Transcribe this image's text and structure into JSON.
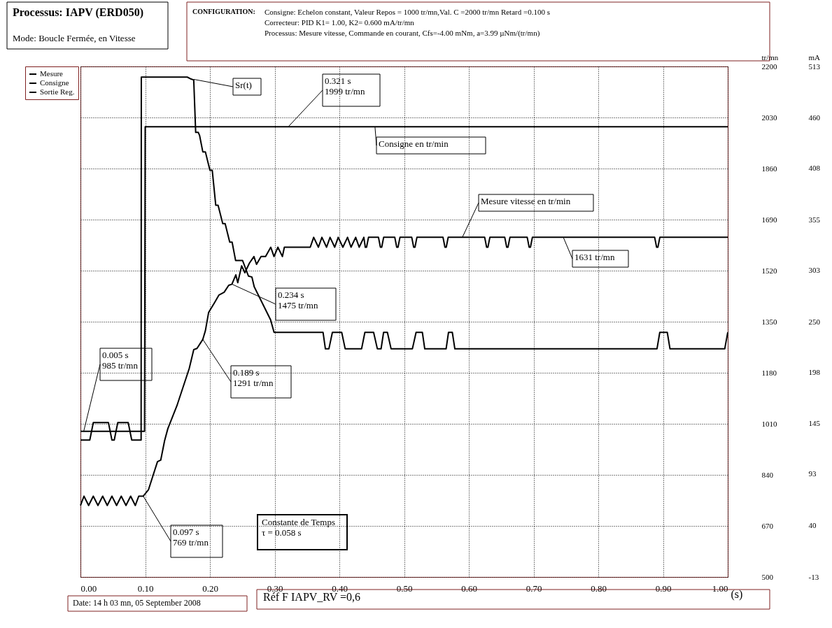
{
  "chart_data": {
    "type": "line",
    "title": "Processus: IAPV (ERD050)",
    "subtitle": "Mode: Boucle Fermée, en Vitesse",
    "xlabel": "(s)",
    "ylabel": "tr/mn",
    "y2label": "mA",
    "xlim": [
      0,
      1
    ],
    "xticks": [
      {
        "value": 0,
        "label": "0.00"
      },
      {
        "value": 0.1,
        "label": "0.10"
      },
      {
        "value": 0.2,
        "label": "0.20"
      },
      {
        "value": 0.3,
        "label": "0.30"
      },
      {
        "value": 0.4,
        "label": "0.40"
      },
      {
        "value": 0.5,
        "label": "0.50"
      },
      {
        "value": 0.6,
        "label": "0.60"
      },
      {
        "value": 0.7,
        "label": "0.70"
      },
      {
        "value": 0.8,
        "label": "0.80"
      },
      {
        "value": 0.9,
        "label": "0.90"
      },
      {
        "value": 1,
        "label": "1.00"
      }
    ],
    "ylim": [
      500,
      2200
    ],
    "yticks": [
      500,
      670,
      840,
      1010,
      1180,
      1350,
      1520,
      1690,
      1860,
      2030,
      2200
    ],
    "y2lim": [
      -13,
      513
    ],
    "y2ticks": [
      -13,
      40,
      93,
      145,
      198,
      250,
      303,
      355,
      408,
      460,
      513
    ],
    "grid": true,
    "legend": "top left",
    "line_style": "solid",
    "series": [
      {
        "name": "Mesure",
        "color": "#000000",
        "x": [
          0,
          0.0054,
          0.0126,
          0.0198,
          0.027,
          0.0343,
          0.0414,
          0.0486,
          0.0558,
          0.063,
          0.0703,
          0.0775,
          0.0847,
          0.09,
          0.097,
          0.105,
          0.112,
          0.119,
          0.124,
          0.13,
          0.135,
          0.149,
          0.168,
          0.175,
          0.18,
          0.189,
          0.193,
          0.198,
          0.207,
          0.214,
          0.222,
          0.229,
          0.234,
          0.24,
          0.243,
          0.249,
          0.254,
          0.261,
          0.268,
          0.272,
          0.279,
          0.286,
          0.294,
          0.299,
          0.305,
          0.312,
          0.315,
          0.355,
          0.3603,
          0.3676,
          0.373,
          0.3802,
          0.3856,
          0.3928,
          0.3982,
          0.4054,
          0.4126,
          0.418,
          0.4252,
          0.4306,
          0.4378,
          0.44,
          0.442,
          0.445,
          0.4604,
          0.4634,
          0.4654,
          0.4684,
          0.4856,
          0.4886,
          0.4906,
          0.4936,
          0.5118,
          0.5148,
          0.5168,
          0.5198,
          0.5601,
          0.5631,
          0.5651,
          0.5681,
          0.6245,
          0.6275,
          0.6295,
          0.6325,
          0.6555,
          0.6585,
          0.6605,
          0.6635,
          0.6902,
          0.6932,
          0.6952,
          0.6982,
          0.8871,
          0.8901,
          0.8921,
          0.8951,
          1
        ],
        "values": [
          738,
          769,
          738,
          769,
          738,
          769,
          738,
          769,
          738,
          769,
          738,
          769,
          738,
          769,
          769,
          790,
          837,
          884,
          889,
          954,
          994,
          1070,
          1194,
          1257,
          1261,
          1291,
          1320,
          1381,
          1413,
          1439,
          1448,
          1471,
          1475,
          1506,
          1480,
          1536,
          1513,
          1545,
          1567,
          1541,
          1567,
          1567,
          1598,
          1567,
          1598,
          1567,
          1598,
          1598,
          1631,
          1598,
          1631,
          1598,
          1631,
          1598,
          1631,
          1598,
          1631,
          1598,
          1631,
          1598,
          1631,
          1598,
          1598,
          1631,
          1631,
          1598,
          1598,
          1631,
          1631,
          1598,
          1598,
          1631,
          1631,
          1598,
          1598,
          1631,
          1631,
          1598,
          1598,
          1631,
          1631,
          1598,
          1598,
          1631,
          1631,
          1598,
          1598,
          1631,
          1631,
          1598,
          1598,
          1631,
          1631,
          1598,
          1598,
          1631,
          1631
        ]
      },
      {
        "name": "Consigne",
        "color": "#000000",
        "x": [
          0,
          0.099,
          0.1,
          1
        ],
        "values": [
          985,
          985,
          1999,
          1999
        ]
      },
      {
        "name": "Sortie Reg.",
        "color": "#000000",
        "axis": "y2",
        "x": [
          0,
          0.0144,
          0.0198,
          0.0432,
          0.0486,
          0.0522,
          0.0576,
          0.0738,
          0.0792,
          0.0937,
          0.094,
          0.165,
          0.171,
          0.175,
          0.178,
          0.182,
          0.184,
          0.189,
          0.193,
          0.2,
          0.2036,
          0.209,
          0.2126,
          0.2198,
          0.2235,
          0.2306,
          0.2343,
          0.2397,
          0.2505,
          0.2595,
          0.2649,
          0.2684,
          0.2937,
          0.2991,
          0.3748,
          0.3784,
          0.3838,
          0.3892,
          0.4036,
          0.409,
          0.4343,
          0.4394,
          0.4529,
          0.4587,
          0.4644,
          0.4683,
          0.4742,
          0.4799,
          0.5128,
          0.5185,
          0.5282,
          0.5319,
          0.5649,
          0.5686,
          0.5745,
          0.5784,
          0.8907,
          0.895,
          0.9066,
          0.9108,
          0.9954,
          1
        ],
        "values": [
          128,
          128,
          146,
          146,
          128,
          128,
          146,
          146,
          128,
          128,
          502,
          502,
          500,
          499,
          445,
          445,
          442,
          425,
          425,
          406,
          406,
          370,
          370,
          351,
          351,
          332,
          332,
          313,
          313,
          297,
          296,
          286,
          252,
          239,
          239,
          222,
          222,
          239,
          239,
          222,
          222,
          239,
          239,
          222,
          222,
          239,
          239,
          222,
          222,
          239,
          239,
          222,
          222,
          239,
          239,
          222,
          222,
          239,
          239,
          222,
          222,
          239
        ]
      }
    ],
    "annotations": [
      {
        "text": "Sr(t)",
        "x": 0.175,
        "y": 2157
      },
      {
        "text": "0.321 s\n1999 tr/mn",
        "x": 0.321,
        "y": 1999
      },
      {
        "text": "Consigne en tr/min",
        "x": 0.455,
        "y": 1999
      },
      {
        "text": "Mesure vitesse en tr/min",
        "x": 0.59,
        "y": 1631
      },
      {
        "text": "1631 tr/mn",
        "x": 0.746,
        "y": 1631
      },
      {
        "text": "0.234 s\n1475 tr/mn",
        "x": 0.234,
        "y": 1475
      },
      {
        "text": "0.189 s\n1291 tr/mn",
        "x": 0.189,
        "y": 1291
      },
      {
        "text": "0.005 s\n985 tr/mn",
        "x": 0.005,
        "y": 985
      },
      {
        "text": "0.097 s\n769 tr/mn",
        "x": 0.097,
        "y": 769
      },
      "CONFIGURATION:",
      "Consigne: Echelon constant, Valeur Repos = 1000 tr/mn,Val. C =2000 tr/mn Retard =0.100 s",
      "Correcteur: PID K1= 1.00, K2= 0.600 mA/tr/mn",
      "Processus:  Mesure vitesse, Commande en courant, Cfs=-4.00 mNm, a=3.99 µNm/(tr/mn)",
      "Constante de Temps\nτ = 0.058 s",
      "Date: 14 h 03 mn, 05 September 2008",
      "Réf F  IAPV_RV  =0,6"
    ]
  }
}
